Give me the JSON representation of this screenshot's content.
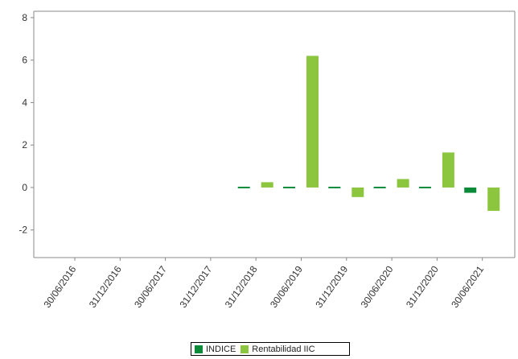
{
  "chart_data": {
    "type": "bar",
    "categories": [
      "30/06/2016",
      "31/12/2016",
      "30/06/2017",
      "31/12/2017",
      "31/12/2018",
      "30/06/2019",
      "31/12/2019",
      "30/06/2020",
      "31/12/2020",
      "30/06/2021"
    ],
    "x_tick_labels": [
      "30/06/2016",
      "31/12/2016",
      "30/06/2017",
      "31/12/2017",
      "31/12/2018",
      "30/06/2019",
      "31/12/2019",
      "30/06/2020",
      "31/12/2020",
      "30/06/2021"
    ],
    "series": [
      {
        "name": "INDICE",
        "color": "#0b8a3a",
        "values": [
          null,
          null,
          null,
          null,
          -0.05,
          -0.02,
          0.05,
          0.05,
          -0.02,
          -0.25
        ]
      },
      {
        "name": "Rentabilidad IIC",
        "color": "#8cc63f",
        "values": [
          null,
          null,
          null,
          null,
          0.25,
          6.2,
          -0.45,
          0.4,
          1.65,
          -1.1
        ]
      }
    ],
    "ylim": [
      -3.3,
      8.3
    ],
    "y_ticks": [
      -2,
      0,
      2,
      4,
      6,
      8
    ],
    "title": "",
    "xlabel": "",
    "ylabel": "",
    "grid": false,
    "legend_position": "bottom-center"
  }
}
